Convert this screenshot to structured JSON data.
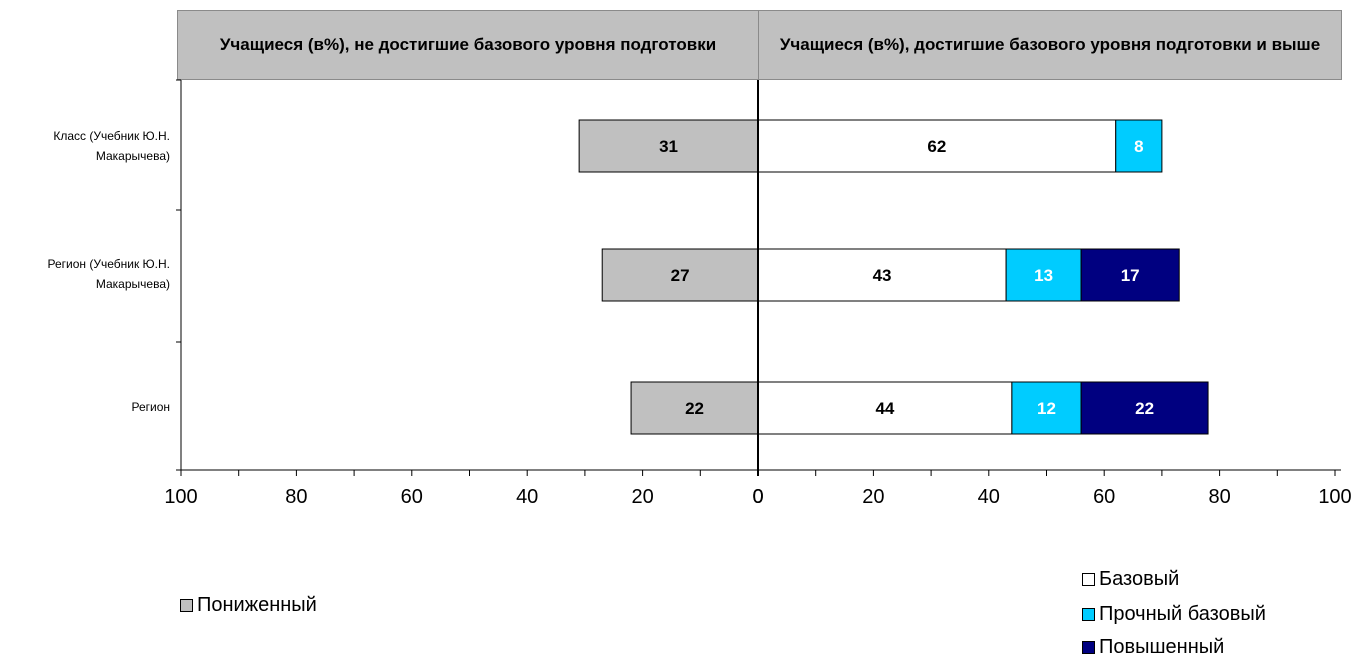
{
  "chart_data": {
    "type": "bar",
    "orientation": "horizontal",
    "stacked": true,
    "diverging": true,
    "headers": {
      "left": "Учащиеся (в%), не достигшие базового уровня подготовки",
      "right": "Учащиеся (в%), достигшие базового уровня подготовки и выше"
    },
    "categories": [
      "Класс (Учебник Ю.Н. Макарычева)",
      "Регион (Учебник Ю.Н. Макарычева)",
      "Регион"
    ],
    "series": [
      {
        "name": "Пониженный",
        "values": [
          31,
          27,
          22
        ],
        "side": "left",
        "color": "#c0c0c0",
        "label_color": "#000000"
      },
      {
        "name": "Базовый",
        "values": [
          62,
          43,
          44
        ],
        "side": "right",
        "color": "#ffffff",
        "label_color": "#000000"
      },
      {
        "name": "Прочный базовый",
        "values": [
          8,
          13,
          12
        ],
        "side": "right",
        "color": "#00ccff",
        "label_color": "#ffffff"
      },
      {
        "name": "Повышенный",
        "values": [
          null,
          17,
          22
        ],
        "side": "right",
        "color": "#000080",
        "label_color": "#ffffff"
      }
    ],
    "xlim": [
      -100,
      100
    ],
    "ticks": [
      "100",
      "80",
      "60",
      "40",
      "20",
      "0",
      "0",
      "20",
      "40",
      "60",
      "80",
      "100"
    ],
    "legend": {
      "left": [
        "Пониженный"
      ],
      "right": [
        "Базовый",
        "Прочный базовый",
        "Повышенный"
      ]
    },
    "grid": false
  }
}
